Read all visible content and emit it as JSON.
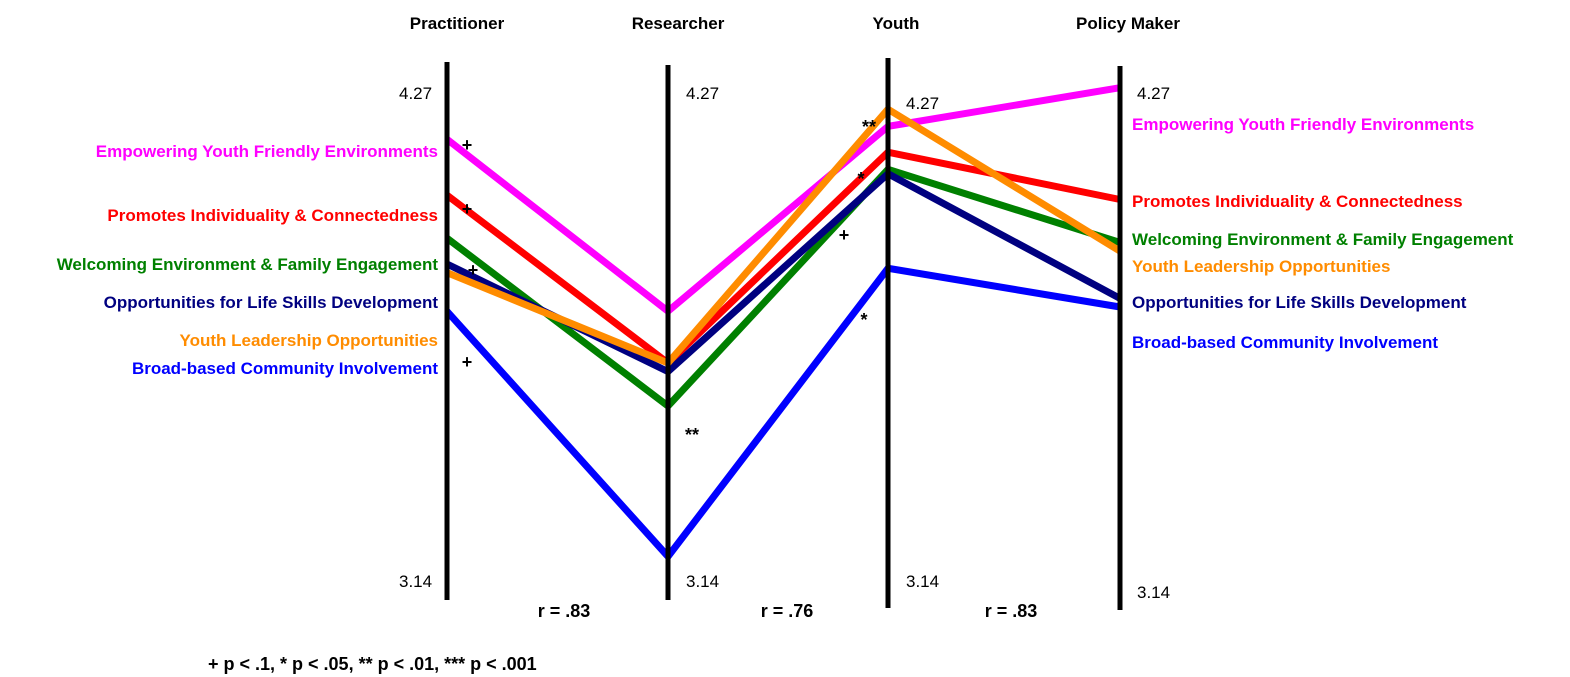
{
  "chart_data": {
    "type": "line",
    "subtype": "parallel-coordinates",
    "title": "",
    "axes": [
      {
        "name": "Practitioner",
        "max_label": "4.27",
        "min_label": "3.14"
      },
      {
        "name": "Researcher",
        "max_label": "4.27",
        "min_label": "3.14"
      },
      {
        "name": "Youth",
        "max_label": "4.27",
        "min_label": "3.14"
      },
      {
        "name": "Policy Maker",
        "max_label": "4.27",
        "min_label": "3.14"
      }
    ],
    "ylim": [
      3.14,
      4.27
    ],
    "series": [
      {
        "name": "Empowering Youth Friendly Environments",
        "color": "#ff00ff",
        "values": [
          4.16,
          3.76,
          4.19,
          4.28
        ],
        "sig": [
          "+",
          "",
          "**",
          ""
        ]
      },
      {
        "name": "Promotes Individuality & Connectedness",
        "color": "#ff0000",
        "values": [
          4.03,
          3.64,
          4.13,
          4.02
        ],
        "sig": [
          "+",
          "",
          "*",
          ""
        ]
      },
      {
        "name": "Welcoming Environment & Family Engagement",
        "color": "#008000",
        "values": [
          3.93,
          3.54,
          4.09,
          3.92
        ],
        "sig": [
          "+",
          "**",
          "",
          ""
        ]
      },
      {
        "name": "Opportunities for Life Skills Development",
        "color": "#000080",
        "values": [
          3.87,
          3.62,
          4.08,
          3.79
        ],
        "sig": [
          "",
          "",
          "+",
          ""
        ]
      },
      {
        "name": "Youth Leadership Opportunities",
        "color": "#ff8c00",
        "values": [
          3.85,
          3.64,
          4.23,
          3.9
        ],
        "sig": [
          "",
          "",
          "",
          ""
        ]
      },
      {
        "name": "Broad-based Community Involvement",
        "color": "#0000ff",
        "values": [
          3.76,
          3.19,
          3.86,
          3.77
        ],
        "sig": [
          "+",
          "",
          "*",
          ""
        ]
      }
    ],
    "correlations": [
      "r = .83",
      "r = .76",
      "r = .83"
    ],
    "footnote": "+ p < .1, * p < .05, ** p < .01, *** p < .001"
  }
}
